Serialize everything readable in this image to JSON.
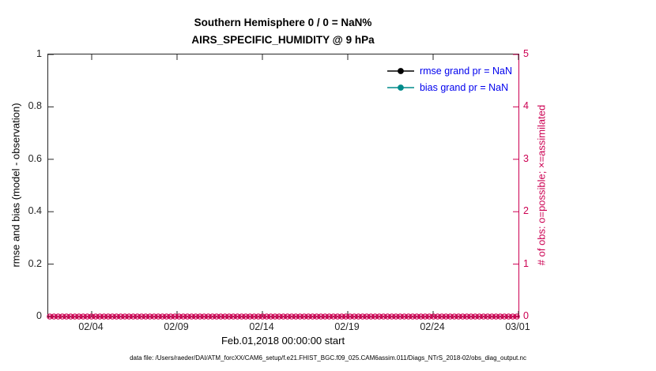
{
  "title": {
    "line1": "Southern Hemisphere 0 / 0 = NaN%",
    "line2": "AIRS_SPECIFIC_HUMIDITY @ 9 hPa"
  },
  "axes": {
    "left": {
      "label": "rmse and bias (model - observation)",
      "ticks": [
        "1",
        "0.8",
        "0.6",
        "0.4",
        "0.2",
        "0"
      ],
      "color": "#262626"
    },
    "right": {
      "label": "# of obs: o=possible; ×=assimilated",
      "ticks": [
        "5",
        "4",
        "3",
        "2",
        "1",
        "0"
      ],
      "color": "#cc0052"
    },
    "x": {
      "ticks": [
        "02/04",
        "02/09",
        "02/14",
        "02/19",
        "02/24",
        "03/01"
      ],
      "label": "Feb.01,2018 00:00:00 start"
    }
  },
  "legend": {
    "text_color": "#0000ee",
    "items": [
      {
        "label": "rmse grand pr = NaN",
        "color": "#000000"
      },
      {
        "label": "bias grand pr = NaN",
        "color": "#008b8b"
      }
    ]
  },
  "footer": "data file: /Users/raeder/DAI/ATM_forcXX/CAM6_setup/f.e21.FHIST_BGC.f09_025.CAM6assim.011/Diags_NTrS_2018-02/obs_diag_output.nc",
  "chart_data": {
    "type": "line",
    "title": "Southern Hemisphere 0 / 0 = NaN% — AIRS_SPECIFIC_HUMIDITY @ 9 hPa",
    "xlabel": "Feb.01,2018 00:00:00 start",
    "x_tick_labels": [
      "02/04",
      "02/09",
      "02/14",
      "02/19",
      "02/24",
      "03/01"
    ],
    "x_range": [
      "2018-02-01",
      "2018-03-01"
    ],
    "ylabel_left": "rmse and bias (model - observation)",
    "ylim_left": [
      0,
      1
    ],
    "yticks_left": [
      0,
      0.2,
      0.4,
      0.6,
      0.8,
      1
    ],
    "ylabel_right": "# of obs: o=possible; ×=assimilated",
    "ylim_right": [
      0,
      5
    ],
    "yticks_right": [
      0,
      1,
      2,
      3,
      4,
      5
    ],
    "grid": false,
    "legend_position": "top-right",
    "series": [
      {
        "name": "rmse grand pr",
        "axis": "left",
        "color": "#000000",
        "value": "NaN",
        "plotted_points": 0
      },
      {
        "name": "bias grand pr",
        "axis": "left",
        "color": "#008b8b",
        "value": "NaN",
        "plotted_points": 0
      },
      {
        "name": "# of obs possible (o markers)",
        "axis": "right",
        "color": "#cc0052",
        "constant_value": 0
      },
      {
        "name": "# of obs assimilated (× markers)",
        "axis": "right",
        "color": "#cc0052",
        "constant_value": 0
      }
    ],
    "obs_marker_count": 113
  }
}
